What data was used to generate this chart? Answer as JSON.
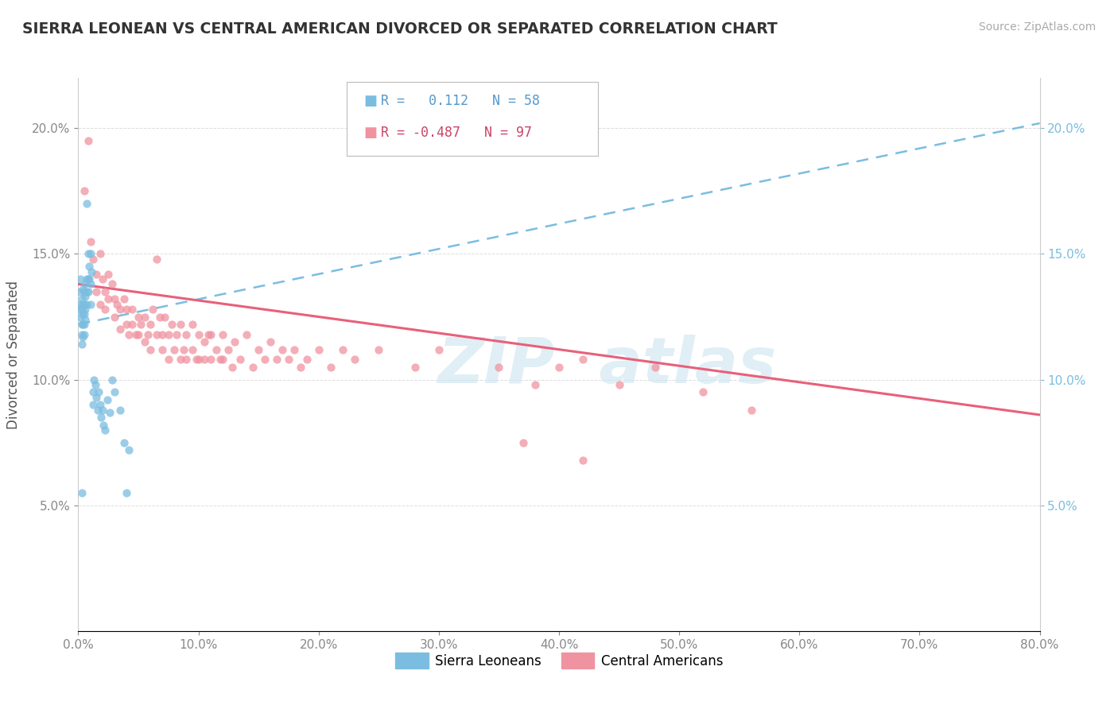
{
  "title": "SIERRA LEONEAN VS CENTRAL AMERICAN DIVORCED OR SEPARATED CORRELATION CHART",
  "source": "Source: ZipAtlas.com",
  "ylabel": "Divorced or Separated",
  "xlim": [
    0.0,
    0.8
  ],
  "ylim": [
    0.0,
    0.22
  ],
  "xticks": [
    0.0,
    0.1,
    0.2,
    0.3,
    0.4,
    0.5,
    0.6,
    0.7,
    0.8
  ],
  "xticklabels": [
    "0.0%",
    "10.0%",
    "20.0%",
    "30.0%",
    "40.0%",
    "50.0%",
    "60.0%",
    "70.0%",
    "80.0%"
  ],
  "yticks": [
    0.05,
    0.1,
    0.15,
    0.2
  ],
  "yticklabels": [
    "5.0%",
    "10.0%",
    "15.0%",
    "20.0%"
  ],
  "sierra_leone_color": "#7bbde0",
  "central_america_color": "#f093a0",
  "sierra_leone_R": 0.112,
  "sierra_leone_N": 58,
  "central_america_R": -0.487,
  "central_america_N": 97,
  "legend_label_sl": "Sierra Leoneans",
  "legend_label_ca": "Central Americans",
  "sierra_leone_scatter": [
    [
      0.001,
      0.135
    ],
    [
      0.001,
      0.128
    ],
    [
      0.002,
      0.14
    ],
    [
      0.002,
      0.13
    ],
    [
      0.002,
      0.125
    ],
    [
      0.003,
      0.132
    ],
    [
      0.003,
      0.128
    ],
    [
      0.003,
      0.122
    ],
    [
      0.003,
      0.118
    ],
    [
      0.003,
      0.114
    ],
    [
      0.004,
      0.136
    ],
    [
      0.004,
      0.13
    ],
    [
      0.004,
      0.126
    ],
    [
      0.004,
      0.122
    ],
    [
      0.004,
      0.117
    ],
    [
      0.005,
      0.135
    ],
    [
      0.005,
      0.13
    ],
    [
      0.005,
      0.126
    ],
    [
      0.005,
      0.122
    ],
    [
      0.005,
      0.118
    ],
    [
      0.006,
      0.138
    ],
    [
      0.006,
      0.133
    ],
    [
      0.006,
      0.128
    ],
    [
      0.006,
      0.124
    ],
    [
      0.007,
      0.17
    ],
    [
      0.007,
      0.14
    ],
    [
      0.007,
      0.135
    ],
    [
      0.007,
      0.13
    ],
    [
      0.008,
      0.15
    ],
    [
      0.008,
      0.14
    ],
    [
      0.008,
      0.135
    ],
    [
      0.009,
      0.145
    ],
    [
      0.009,
      0.14
    ],
    [
      0.01,
      0.15
    ],
    [
      0.01,
      0.138
    ],
    [
      0.01,
      0.13
    ],
    [
      0.011,
      0.143
    ],
    [
      0.012,
      0.095
    ],
    [
      0.012,
      0.09
    ],
    [
      0.013,
      0.1
    ],
    [
      0.014,
      0.098
    ],
    [
      0.015,
      0.093
    ],
    [
      0.016,
      0.088
    ],
    [
      0.017,
      0.095
    ],
    [
      0.018,
      0.09
    ],
    [
      0.019,
      0.085
    ],
    [
      0.02,
      0.088
    ],
    [
      0.021,
      0.082
    ],
    [
      0.022,
      0.08
    ],
    [
      0.024,
      0.092
    ],
    [
      0.026,
      0.087
    ],
    [
      0.028,
      0.1
    ],
    [
      0.03,
      0.095
    ],
    [
      0.035,
      0.088
    ],
    [
      0.038,
      0.075
    ],
    [
      0.04,
      0.055
    ],
    [
      0.042,
      0.072
    ],
    [
      0.003,
      0.055
    ]
  ],
  "central_america_scatter": [
    [
      0.005,
      0.175
    ],
    [
      0.008,
      0.195
    ],
    [
      0.01,
      0.155
    ],
    [
      0.012,
      0.148
    ],
    [
      0.015,
      0.142
    ],
    [
      0.015,
      0.135
    ],
    [
      0.018,
      0.15
    ],
    [
      0.018,
      0.13
    ],
    [
      0.02,
      0.14
    ],
    [
      0.022,
      0.135
    ],
    [
      0.022,
      0.128
    ],
    [
      0.025,
      0.132
    ],
    [
      0.025,
      0.142
    ],
    [
      0.028,
      0.138
    ],
    [
      0.03,
      0.132
    ],
    [
      0.03,
      0.125
    ],
    [
      0.032,
      0.13
    ],
    [
      0.035,
      0.128
    ],
    [
      0.035,
      0.12
    ],
    [
      0.038,
      0.132
    ],
    [
      0.04,
      0.122
    ],
    [
      0.04,
      0.128
    ],
    [
      0.042,
      0.118
    ],
    [
      0.045,
      0.122
    ],
    [
      0.045,
      0.128
    ],
    [
      0.048,
      0.118
    ],
    [
      0.05,
      0.125
    ],
    [
      0.05,
      0.118
    ],
    [
      0.052,
      0.122
    ],
    [
      0.055,
      0.115
    ],
    [
      0.055,
      0.125
    ],
    [
      0.058,
      0.118
    ],
    [
      0.06,
      0.122
    ],
    [
      0.06,
      0.112
    ],
    [
      0.062,
      0.128
    ],
    [
      0.065,
      0.118
    ],
    [
      0.065,
      0.148
    ],
    [
      0.068,
      0.125
    ],
    [
      0.07,
      0.118
    ],
    [
      0.07,
      0.112
    ],
    [
      0.072,
      0.125
    ],
    [
      0.075,
      0.118
    ],
    [
      0.075,
      0.108
    ],
    [
      0.078,
      0.122
    ],
    [
      0.08,
      0.112
    ],
    [
      0.082,
      0.118
    ],
    [
      0.085,
      0.108
    ],
    [
      0.085,
      0.122
    ],
    [
      0.088,
      0.112
    ],
    [
      0.09,
      0.118
    ],
    [
      0.09,
      0.108
    ],
    [
      0.095,
      0.112
    ],
    [
      0.095,
      0.122
    ],
    [
      0.098,
      0.108
    ],
    [
      0.1,
      0.118
    ],
    [
      0.1,
      0.108
    ],
    [
      0.105,
      0.115
    ],
    [
      0.105,
      0.108
    ],
    [
      0.108,
      0.118
    ],
    [
      0.11,
      0.108
    ],
    [
      0.11,
      0.118
    ],
    [
      0.115,
      0.112
    ],
    [
      0.118,
      0.108
    ],
    [
      0.12,
      0.118
    ],
    [
      0.12,
      0.108
    ],
    [
      0.125,
      0.112
    ],
    [
      0.128,
      0.105
    ],
    [
      0.13,
      0.115
    ],
    [
      0.135,
      0.108
    ],
    [
      0.14,
      0.118
    ],
    [
      0.145,
      0.105
    ],
    [
      0.15,
      0.112
    ],
    [
      0.155,
      0.108
    ],
    [
      0.16,
      0.115
    ],
    [
      0.165,
      0.108
    ],
    [
      0.17,
      0.112
    ],
    [
      0.175,
      0.108
    ],
    [
      0.18,
      0.112
    ],
    [
      0.185,
      0.105
    ],
    [
      0.19,
      0.108
    ],
    [
      0.2,
      0.112
    ],
    [
      0.21,
      0.105
    ],
    [
      0.22,
      0.112
    ],
    [
      0.23,
      0.108
    ],
    [
      0.25,
      0.112
    ],
    [
      0.28,
      0.105
    ],
    [
      0.3,
      0.112
    ],
    [
      0.35,
      0.105
    ],
    [
      0.38,
      0.098
    ],
    [
      0.4,
      0.105
    ],
    [
      0.42,
      0.108
    ],
    [
      0.45,
      0.098
    ],
    [
      0.48,
      0.105
    ],
    [
      0.52,
      0.095
    ],
    [
      0.56,
      0.088
    ],
    [
      0.42,
      0.068
    ],
    [
      0.37,
      0.075
    ]
  ],
  "sl_trend_x": [
    0.0,
    0.8
  ],
  "sl_trend_y": [
    0.122,
    0.202
  ],
  "ca_trend_x": [
    0.0,
    0.8
  ],
  "ca_trend_y": [
    0.138,
    0.086
  ]
}
